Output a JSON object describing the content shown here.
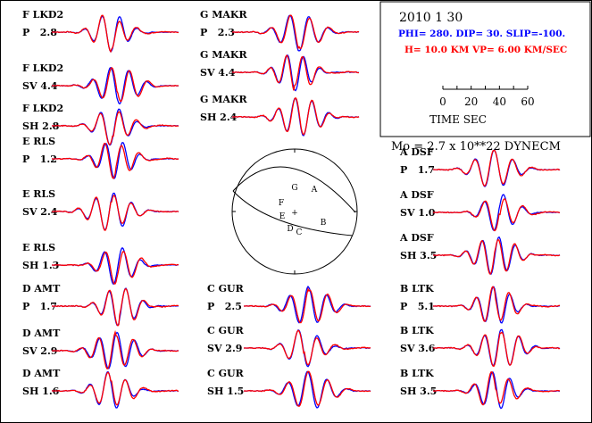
{
  "chart_data": {
    "type": "line",
    "title": "2010  1 30",
    "mechanism": "PHI= 280. DIP= 30. SLIP=-100.",
    "depth_velocity": "H= 10.0 KM  VP= 6.00 KM/SEC",
    "moment": "Mo =  2.7 x 10**22 DYNECM",
    "time_scale": {
      "ticks": [
        "0",
        "20",
        "40",
        "60"
      ],
      "label": "TIME   SEC",
      "range": [
        0,
        60
      ]
    },
    "legend": {
      "observed_color": "#0000ff",
      "synthetic_color": "#ff0000"
    },
    "colors": {
      "observed": "#0000ff",
      "synthetic": "#ff0000",
      "mechanism_text": "#0000ff",
      "depth_text": "#ff0000"
    },
    "stations": [
      {
        "id": "F",
        "name": "LKD2",
        "traces": [
          {
            "phase": "P",
            "amp": "2.8",
            "seed": 1
          },
          {
            "phase": "SV",
            "amp": "4.4",
            "seed": 2
          },
          {
            "phase": "SH",
            "amp": "2.8",
            "seed": 3
          }
        ]
      },
      {
        "id": "G",
        "name": "MAKR",
        "traces": [
          {
            "phase": "P",
            "amp": "2.3",
            "seed": 4
          },
          {
            "phase": "SV",
            "amp": "4.4",
            "seed": 5
          },
          {
            "phase": "SH",
            "amp": "2.4",
            "seed": 6
          }
        ]
      },
      {
        "id": "E",
        "name": "RLS",
        "traces": [
          {
            "phase": "P",
            "amp": "1.2",
            "seed": 7
          },
          {
            "phase": "SV",
            "amp": "2.4",
            "seed": 8
          },
          {
            "phase": "SH",
            "amp": "1.3",
            "seed": 9
          }
        ]
      },
      {
        "id": "A",
        "name": "DSF",
        "traces": [
          {
            "phase": "P",
            "amp": "1.7",
            "seed": 10
          },
          {
            "phase": "SV",
            "amp": "1.0",
            "seed": 11
          },
          {
            "phase": "SH",
            "amp": "3.5",
            "seed": 12
          }
        ]
      },
      {
        "id": "D",
        "name": "AMT",
        "traces": [
          {
            "phase": "P",
            "amp": "1.7",
            "seed": 13
          },
          {
            "phase": "SV",
            "amp": "2.9",
            "seed": 14
          },
          {
            "phase": "SH",
            "amp": "1.6",
            "seed": 15
          }
        ]
      },
      {
        "id": "C",
        "name": "GUR",
        "traces": [
          {
            "phase": "P",
            "amp": "2.5",
            "seed": 16
          },
          {
            "phase": "SV",
            "amp": "2.9",
            "seed": 17
          },
          {
            "phase": "SH",
            "amp": "1.5",
            "seed": 18
          }
        ]
      },
      {
        "id": "B",
        "name": "LTK",
        "traces": [
          {
            "phase": "P",
            "amp": "5.1",
            "seed": 19
          },
          {
            "phase": "SV",
            "amp": "3.6",
            "seed": 20
          },
          {
            "phase": "SH",
            "amp": "3.5",
            "seed": 21
          }
        ]
      }
    ],
    "beachball": {
      "stations_plotted": [
        "G",
        "A",
        "F",
        "E",
        "B",
        "D",
        "C"
      ],
      "center_mark": "+"
    }
  }
}
